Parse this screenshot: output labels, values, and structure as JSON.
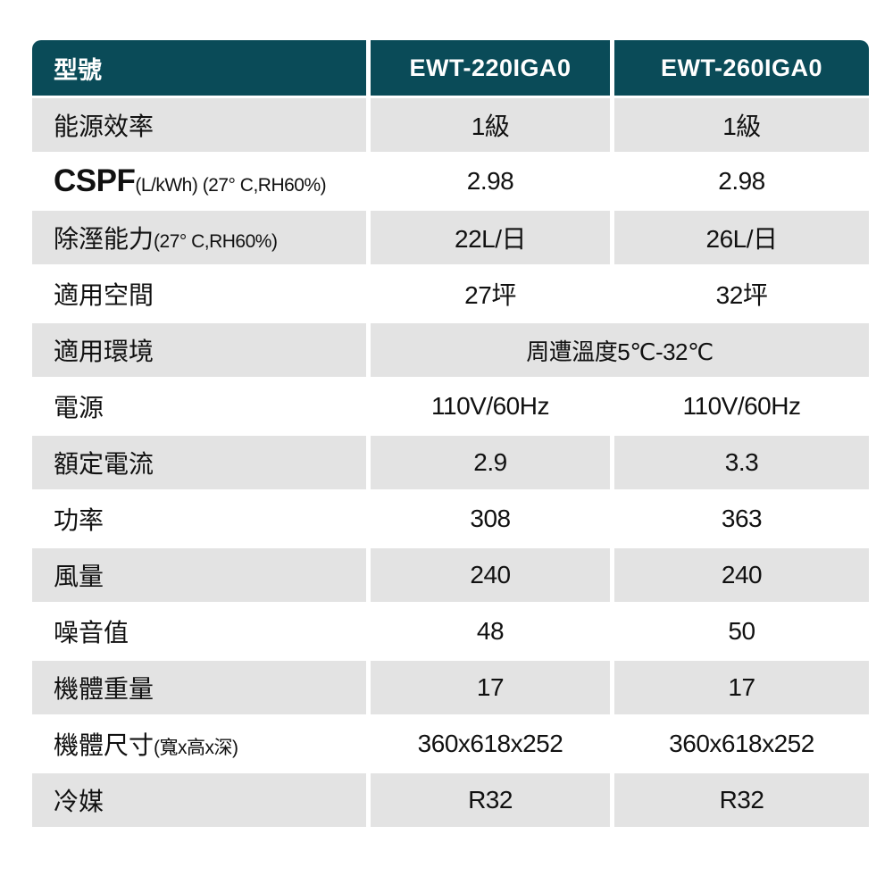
{
  "table": {
    "header": {
      "label": "型號",
      "columns": [
        "EWT-220IGA0",
        "EWT-260IGA0"
      ]
    },
    "rows": [
      {
        "label": "能源效率",
        "values": [
          "1級",
          "1級"
        ]
      },
      {
        "label": "CSPF",
        "label_sub": "(L/kWh) (27° C,RH60%)",
        "values": [
          "2.98",
          "2.98"
        ]
      },
      {
        "label": "除溼能力",
        "label_sub": "(27° C,RH60%)",
        "values": [
          "22L/日",
          "26L/日"
        ]
      },
      {
        "label": "適用空間",
        "values": [
          "27坪",
          "32坪"
        ]
      },
      {
        "label": "適用環境",
        "merged": "周遭溫度5℃-32℃"
      },
      {
        "label": "電源",
        "values": [
          "110V/60Hz",
          "110V/60Hz"
        ]
      },
      {
        "label": "額定電流",
        "values": [
          "2.9",
          "3.3"
        ]
      },
      {
        "label": "功率",
        "values": [
          "308",
          "363"
        ]
      },
      {
        "label": "風量",
        "values": [
          "240",
          "240"
        ]
      },
      {
        "label": "噪音值",
        "values": [
          "48",
          "50"
        ]
      },
      {
        "label": "機體重量",
        "values": [
          "17",
          "17"
        ]
      },
      {
        "label": "機體尺寸",
        "label_sub": "(寬x高x深)",
        "values": [
          "360x618x252",
          "360x618x252"
        ]
      },
      {
        "label": "冷媒",
        "values": [
          "R32",
          "R32"
        ]
      }
    ],
    "colors": {
      "header_bg": "#0a4b58",
      "header_text": "#ffffff",
      "row_alt_bg": "#e3e3e3",
      "row_bg": "#ffffff",
      "text": "#111111"
    }
  }
}
